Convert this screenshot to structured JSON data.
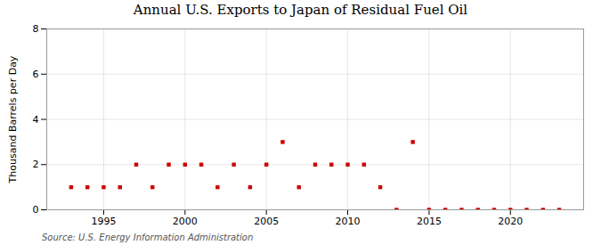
{
  "chart_data": {
    "type": "scatter",
    "title": "Annual U.S. Exports to Japan of Residual Fuel Oil",
    "ylabel": "Thousand Barrels per Day",
    "source": "Source: U.S. Energy Information Administration",
    "x": [
      1993,
      1994,
      1995,
      1996,
      1997,
      1998,
      1999,
      2000,
      2001,
      2002,
      2003,
      2004,
      2005,
      2006,
      2007,
      2008,
      2009,
      2010,
      2011,
      2012,
      2013,
      2014,
      2015,
      2016,
      2017,
      2018,
      2019,
      2020,
      2021,
      2022,
      2023
    ],
    "values": [
      1,
      1,
      1,
      1,
      2,
      1,
      2,
      2,
      2,
      1,
      2,
      1,
      2,
      3,
      1,
      2,
      2,
      2,
      2,
      1,
      0,
      3,
      0,
      0,
      0,
      0,
      0,
      0,
      0,
      0,
      0
    ],
    "color": "#cc0000",
    "marker": "square",
    "xlim": [
      1991.5,
      2024.5
    ],
    "xticks": [
      1995,
      2000,
      2005,
      2010,
      2015,
      2020
    ],
    "ylim": [
      0,
      8
    ],
    "yticks": [
      0,
      2,
      4,
      6,
      8
    ],
    "grid": true
  }
}
